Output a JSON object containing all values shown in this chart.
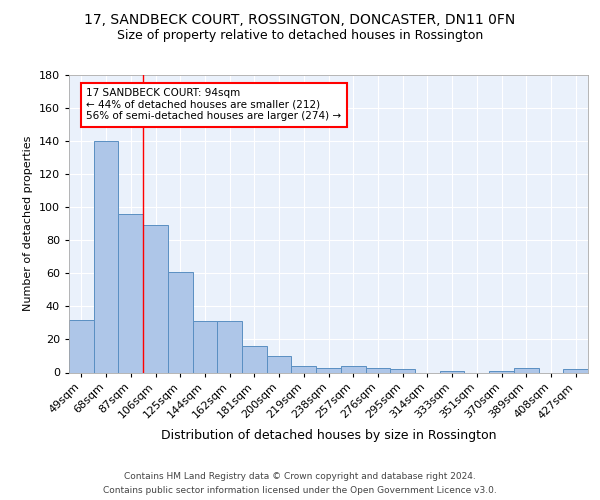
{
  "title": "17, SANDBECK COURT, ROSSINGTON, DONCASTER, DN11 0FN",
  "subtitle": "Size of property relative to detached houses in Rossington",
  "xlabel": "Distribution of detached houses by size in Rossington",
  "ylabel": "Number of detached properties",
  "categories": [
    "49sqm",
    "68sqm",
    "87sqm",
    "106sqm",
    "125sqm",
    "144sqm",
    "162sqm",
    "181sqm",
    "200sqm",
    "219sqm",
    "238sqm",
    "257sqm",
    "276sqm",
    "295sqm",
    "314sqm",
    "333sqm",
    "351sqm",
    "370sqm",
    "389sqm",
    "408sqm",
    "427sqm"
  ],
  "values": [
    32,
    140,
    96,
    89,
    61,
    31,
    31,
    16,
    10,
    4,
    3,
    4,
    3,
    2,
    0,
    1,
    0,
    1,
    3,
    0,
    2
  ],
  "bar_color": "#aec6e8",
  "bar_edge_color": "#5a8fc2",
  "red_line_x": 2.5,
  "annotation_text": "17 SANDBECK COURT: 94sqm\n← 44% of detached houses are smaller (212)\n56% of semi-detached houses are larger (274) →",
  "annotation_box_color": "white",
  "annotation_box_edge_color": "red",
  "ylim": [
    0,
    180
  ],
  "yticks": [
    0,
    20,
    40,
    60,
    80,
    100,
    120,
    140,
    160,
    180
  ],
  "footer_line1": "Contains HM Land Registry data © Crown copyright and database right 2024.",
  "footer_line2": "Contains public sector information licensed under the Open Government Licence v3.0.",
  "background_color": "#eaf1fb",
  "fig_background_color": "#ffffff",
  "title_fontsize": 10,
  "subtitle_fontsize": 9,
  "label_fontsize": 8,
  "xlabel_fontsize": 9,
  "annotation_fontsize": 7.5,
  "footer_fontsize": 6.5
}
